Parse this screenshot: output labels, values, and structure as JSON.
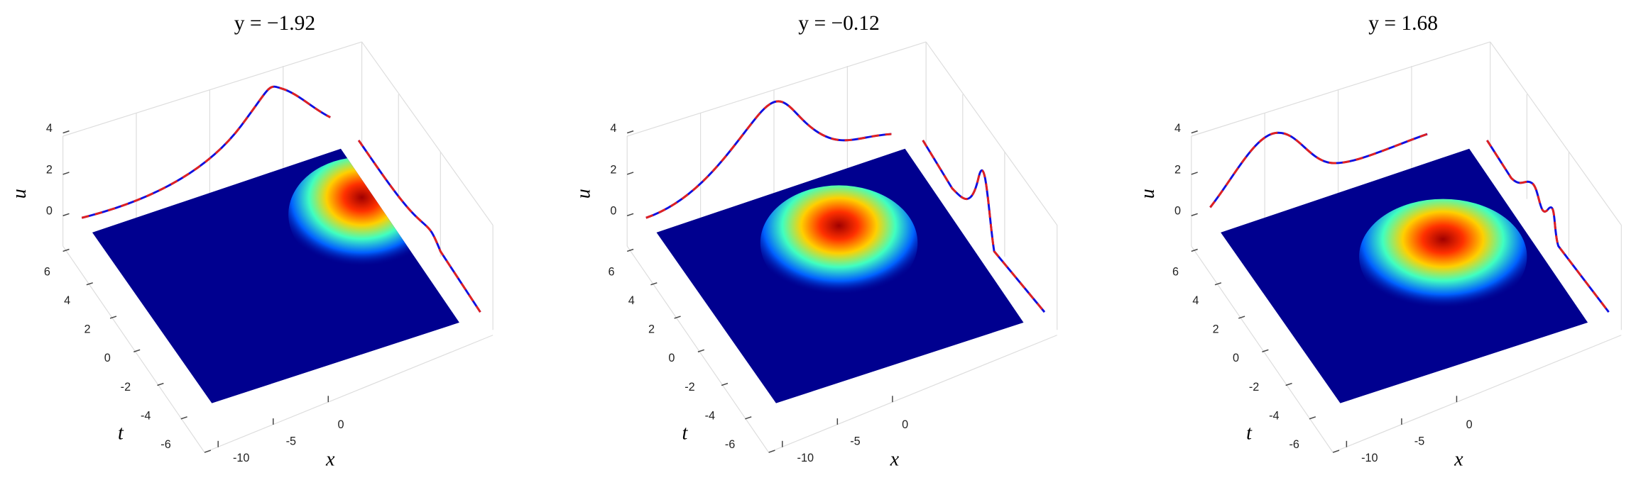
{
  "chart_data": [
    {
      "type": "surface3d",
      "title": "y = −1.92",
      "xlabel": "x",
      "ylabel": "t",
      "zlabel": "u",
      "xticks": [
        -10,
        -5,
        0
      ],
      "yticks": [
        6,
        4,
        2,
        0,
        -2,
        -4,
        -6
      ],
      "zticks": [
        4,
        2,
        0
      ]
    },
    {
      "type": "surface3d",
      "title": "y = −0.12",
      "xlabel": "x",
      "ylabel": "t",
      "zlabel": "u",
      "xticks": [
        -10,
        -5,
        0
      ],
      "yticks": [
        6,
        4,
        2,
        0,
        -2,
        -4,
        -6
      ],
      "zticks": [
        4,
        2,
        0
      ]
    },
    {
      "type": "surface3d",
      "title": "y = 1.68",
      "xlabel": "x",
      "ylabel": "t",
      "zlabel": "u",
      "xticks": [
        -10,
        -5,
        0
      ],
      "yticks": [
        6,
        4,
        2,
        0,
        -2,
        -4,
        -6
      ],
      "zticks": [
        4,
        2,
        0
      ]
    }
  ]
}
